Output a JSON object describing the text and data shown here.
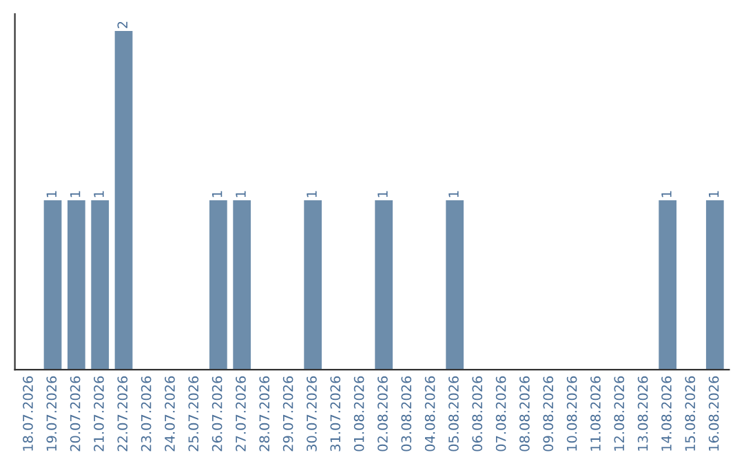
{
  "chart_data": {
    "type": "bar",
    "categories": [
      "18.07.2026",
      "19.07.2026",
      "20.07.2026",
      "21.07.2026",
      "22.07.2026",
      "23.07.2026",
      "24.07.2026",
      "25.07.2026",
      "26.07.2026",
      "27.07.2026",
      "28.07.2026",
      "29.07.2026",
      "30.07.2026",
      "31.07.2026",
      "01.08.2026",
      "02.08.2026",
      "03.08.2026",
      "04.08.2026",
      "05.08.2026",
      "06.08.2026",
      "07.08.2026",
      "08.08.2026",
      "09.08.2026",
      "10.08.2026",
      "11.08.2026",
      "12.08.2026",
      "13.08.2026",
      "14.08.2026",
      "15.08.2026",
      "16.08.2026"
    ],
    "values": [
      0,
      1,
      1,
      1,
      2,
      0,
      0,
      0,
      1,
      1,
      0,
      0,
      1,
      0,
      0,
      1,
      0,
      0,
      1,
      0,
      0,
      0,
      0,
      0,
      0,
      0,
      0,
      1,
      0,
      1
    ],
    "value_labels": [
      null,
      "1",
      "1",
      "1",
      "2",
      null,
      null,
      null,
      "1",
      "1",
      null,
      null,
      "1",
      null,
      null,
      "1",
      null,
      null,
      "1",
      null,
      null,
      null,
      null,
      null,
      null,
      null,
      null,
      "1",
      null,
      "1"
    ],
    "color": "#6d8dab",
    "tick_labels": "x",
    "grid": false,
    "legend": false
  }
}
